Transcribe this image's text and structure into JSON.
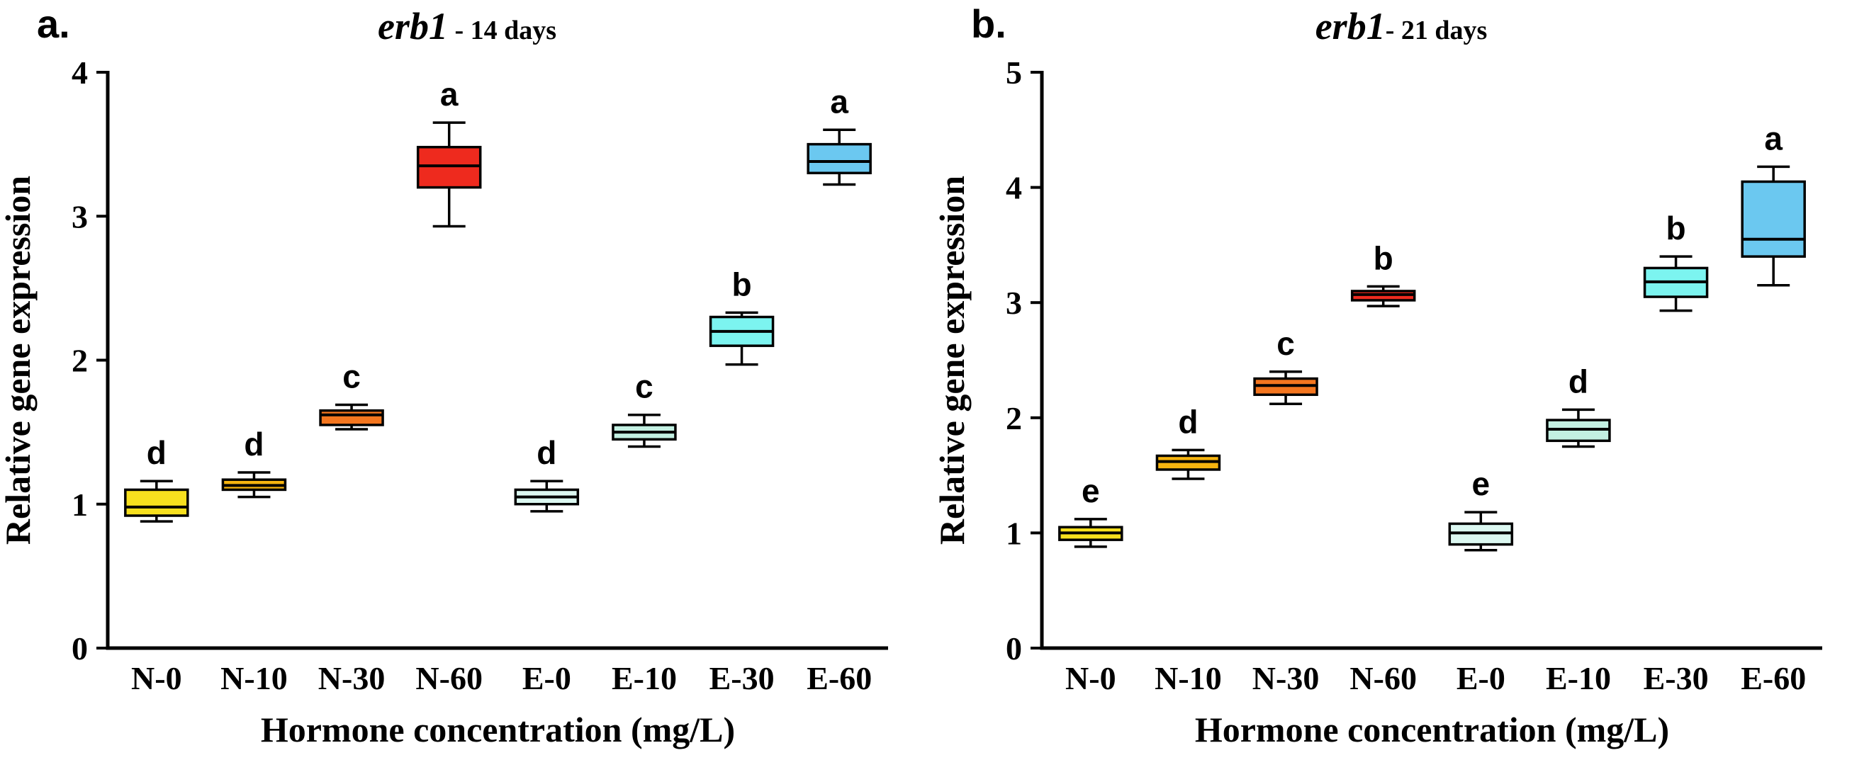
{
  "figure": {
    "background": "#FFFFFF",
    "panels": [
      {
        "panel_label": "a.",
        "title_gene": "erb1",
        "title_period": " - 14 days"
      },
      {
        "panel_label": "b.",
        "title_gene": "erb1",
        "title_period": "- 21 days"
      }
    ]
  },
  "chart_data": [
    {
      "type": "box",
      "panel": "a",
      "title": "erb1 - 14 days",
      "xlabel": "Hormone concentration (mg/L)",
      "ylabel": "Relative gene expression",
      "ylim": [
        0,
        4
      ],
      "yticks": [
        0,
        1,
        2,
        3,
        4
      ],
      "grid": false,
      "legend": "none",
      "categories": [
        "N-0",
        "N-10",
        "N-30",
        "N-60",
        "E-0",
        "E-10",
        "E-30",
        "E-60"
      ],
      "boxes": [
        {
          "category": "N-0",
          "letter": "d",
          "whisker_low": 0.88,
          "q1": 0.92,
          "median": 0.98,
          "q3": 1.1,
          "whisker_high": 1.16,
          "fill": "#F7E01E"
        },
        {
          "category": "N-10",
          "letter": "d",
          "whisker_low": 1.05,
          "q1": 1.1,
          "median": 1.13,
          "q3": 1.17,
          "whisker_high": 1.22,
          "fill": "#F6B40F"
        },
        {
          "category": "N-30",
          "letter": "c",
          "whisker_low": 1.52,
          "q1": 1.55,
          "median": 1.62,
          "q3": 1.65,
          "whisker_high": 1.69,
          "fill": "#F4761F"
        },
        {
          "category": "N-60",
          "letter": "a",
          "whisker_low": 2.93,
          "q1": 3.2,
          "median": 3.35,
          "q3": 3.48,
          "whisker_high": 3.65,
          "fill": "#EE2A1E"
        },
        {
          "category": "E-0",
          "letter": "d",
          "whisker_low": 0.95,
          "q1": 1.0,
          "median": 1.05,
          "q3": 1.1,
          "whisker_high": 1.16,
          "fill": "#DCF8F1"
        },
        {
          "category": "E-10",
          "letter": "c",
          "whisker_low": 1.4,
          "q1": 1.45,
          "median": 1.5,
          "q3": 1.55,
          "whisker_high": 1.62,
          "fill": "#C3F0E2"
        },
        {
          "category": "E-30",
          "letter": "b",
          "whisker_low": 1.97,
          "q1": 2.1,
          "median": 2.2,
          "q3": 2.3,
          "whisker_high": 2.33,
          "fill": "#7CF4F0"
        },
        {
          "category": "E-60",
          "letter": "a",
          "whisker_low": 3.22,
          "q1": 3.3,
          "median": 3.38,
          "q3": 3.5,
          "whisker_high": 3.6,
          "fill": "#6BC8F0"
        }
      ]
    },
    {
      "type": "box",
      "panel": "b",
      "title": "erb1 - 21 days",
      "xlabel": "Hormone concentration (mg/L)",
      "ylabel": "Relative gene expression",
      "ylim": [
        0,
        5
      ],
      "yticks": [
        0,
        1,
        2,
        3,
        4,
        5
      ],
      "grid": false,
      "legend": "none",
      "categories": [
        "N-0",
        "N-10",
        "N-30",
        "N-60",
        "E-0",
        "E-10",
        "E-30",
        "E-60"
      ],
      "boxes": [
        {
          "category": "N-0",
          "letter": "e",
          "whisker_low": 0.88,
          "q1": 0.94,
          "median": 1.0,
          "q3": 1.05,
          "whisker_high": 1.12,
          "fill": "#F7E01E"
        },
        {
          "category": "N-10",
          "letter": "d",
          "whisker_low": 1.47,
          "q1": 1.55,
          "median": 1.62,
          "q3": 1.67,
          "whisker_high": 1.72,
          "fill": "#F6B40F"
        },
        {
          "category": "N-30",
          "letter": "c",
          "whisker_low": 2.12,
          "q1": 2.2,
          "median": 2.28,
          "q3": 2.34,
          "whisker_high": 2.4,
          "fill": "#F4761F"
        },
        {
          "category": "N-60",
          "letter": "b",
          "whisker_low": 2.97,
          "q1": 3.02,
          "median": 3.07,
          "q3": 3.1,
          "whisker_high": 3.14,
          "fill": "#EE2A1E"
        },
        {
          "category": "E-0",
          "letter": "e",
          "whisker_low": 0.85,
          "q1": 0.9,
          "median": 1.0,
          "q3": 1.08,
          "whisker_high": 1.18,
          "fill": "#DCF8F1"
        },
        {
          "category": "E-10",
          "letter": "d",
          "whisker_low": 1.75,
          "q1": 1.8,
          "median": 1.9,
          "q3": 1.98,
          "whisker_high": 2.07,
          "fill": "#C3F0E2"
        },
        {
          "category": "E-30",
          "letter": "b",
          "whisker_low": 2.93,
          "q1": 3.05,
          "median": 3.18,
          "q3": 3.3,
          "whisker_high": 3.4,
          "fill": "#7CF4F0"
        },
        {
          "category": "E-60",
          "letter": "a",
          "whisker_low": 3.15,
          "q1": 3.4,
          "median": 3.55,
          "q3": 4.05,
          "whisker_high": 4.18,
          "fill": "#6BC8F0"
        }
      ]
    }
  ]
}
